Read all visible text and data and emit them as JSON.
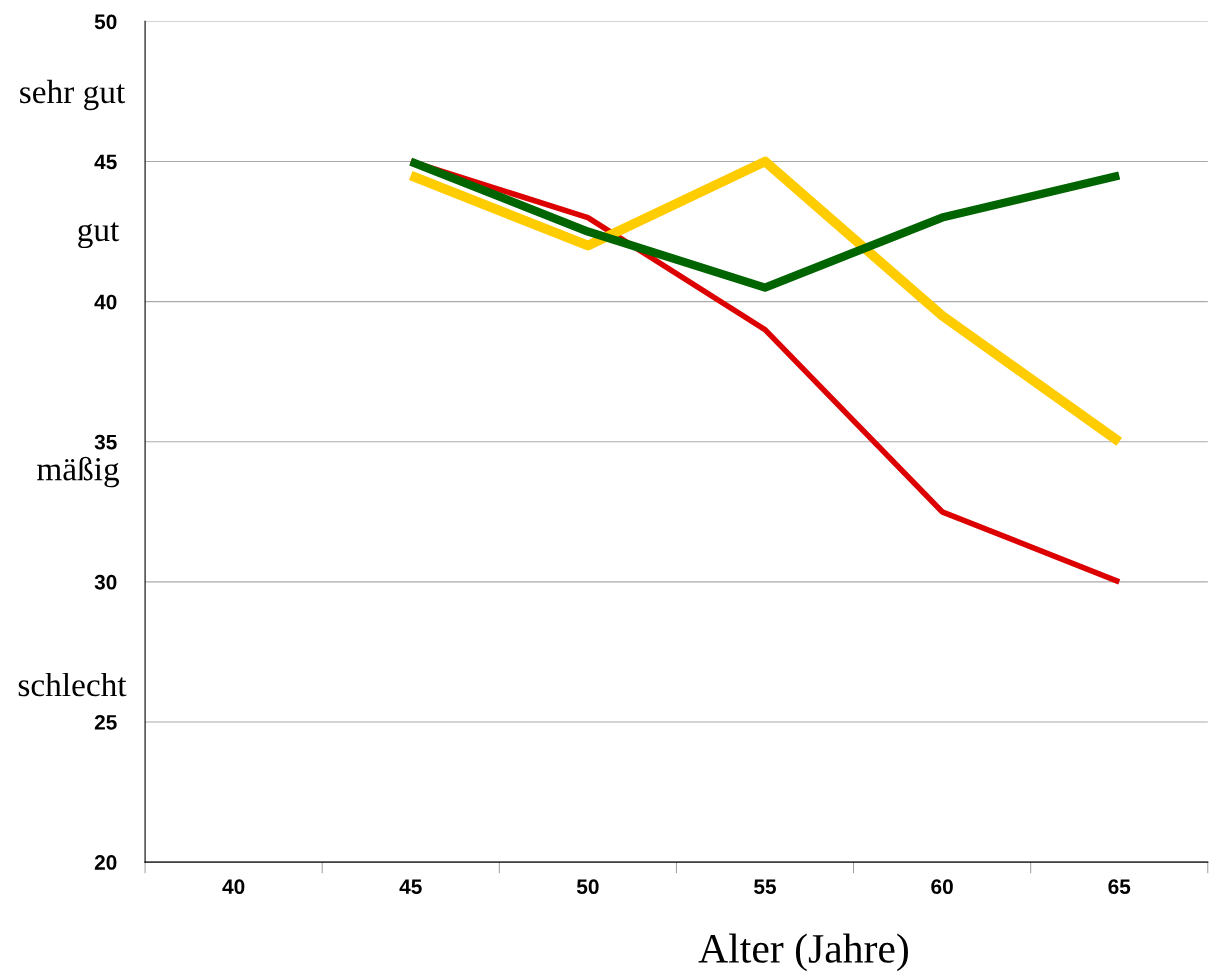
{
  "chart_data": {
    "type": "line",
    "xlabel": "Alter (Jahre)",
    "categories": [
      "40",
      "45",
      "50",
      "55",
      "60",
      "65"
    ],
    "series": [
      {
        "color": "#dd0000",
        "values": [
          null,
          45,
          43,
          39,
          32.5,
          30
        ]
      },
      {
        "color": "#ffcc00",
        "values": [
          null,
          44.5,
          42,
          45,
          39.5,
          35
        ]
      },
      {
        "color": "#006400",
        "values": [
          null,
          45,
          42.5,
          40.5,
          43,
          44.5
        ]
      }
    ],
    "ylim": [
      20,
      50
    ],
    "yticks": [
      20,
      25,
      30,
      35,
      40,
      45,
      50
    ],
    "grid": "y",
    "legend": false,
    "marker": "none",
    "line_style": "solid",
    "annotations": [
      "sehr gut",
      "gut",
      "mäßig",
      "schlecht"
    ]
  }
}
